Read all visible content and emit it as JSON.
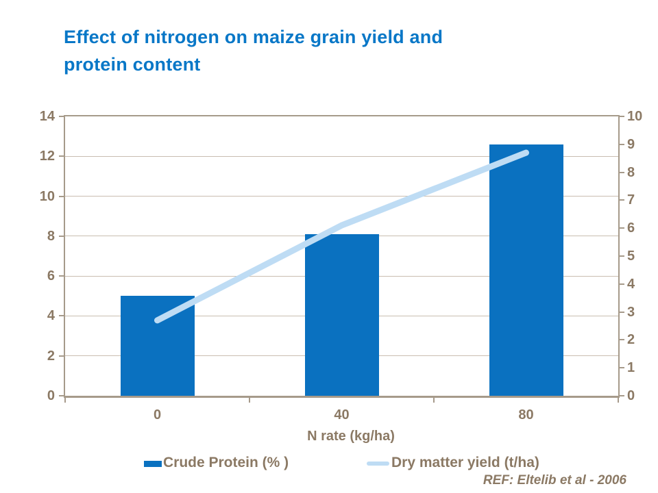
{
  "title": {
    "line1": "Effect of nitrogen on maize grain yield and",
    "line2": "protein content"
  },
  "chart_data": {
    "type": "bar",
    "subtype": "bar-and-line-combo",
    "categories": [
      "0",
      "40",
      "80"
    ],
    "series": [
      {
        "name": "Crude Protein (% )",
        "type": "bar",
        "axis": "left",
        "values": [
          5.0,
          8.1,
          12.6
        ],
        "color": "#0A71C0"
      },
      {
        "name": "Dry matter yield (t/ha)",
        "type": "line",
        "axis": "right",
        "values": [
          2.7,
          6.1,
          8.7
        ],
        "color": "#BEDCF4"
      }
    ],
    "xlabel": "N rate (kg/ha)",
    "left_axis": {
      "min": 0,
      "max": 14,
      "step": 2,
      "ticks": [
        "0",
        "2",
        "4",
        "6",
        "8",
        "10",
        "12",
        "14"
      ]
    },
    "right_axis": {
      "min": 0,
      "max": 10,
      "step": 1,
      "ticks": [
        "0",
        "1",
        "2",
        "3",
        "4",
        "5",
        "6",
        "7",
        "8",
        "9",
        "10"
      ]
    },
    "grid": true,
    "legend_position": "bottom"
  },
  "footer": {
    "ref": "REF:  Eltelib et al - 2006"
  },
  "colors": {
    "title_blue": "#0877C7",
    "bar_blue": "#0A71C0",
    "line_light_blue": "#BEDCF4",
    "axis_text": "#8B7964",
    "gridline": "#C9BDB0",
    "axis_border": "#A69A8A",
    "background": "#FFFFFF"
  }
}
